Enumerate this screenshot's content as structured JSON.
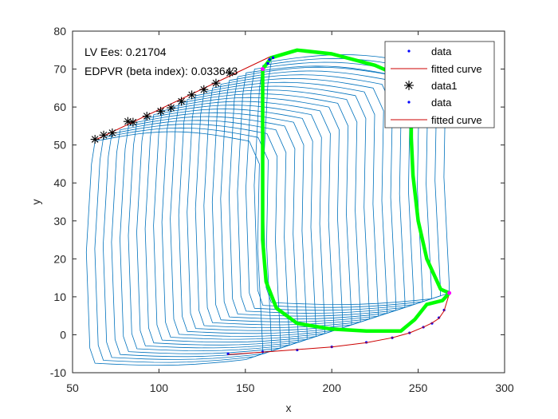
{
  "chart_data": {
    "type": "line",
    "title": "",
    "xlabel": "x",
    "ylabel": "y",
    "xlim": [
      50,
      300
    ],
    "ylim": [
      -10,
      80
    ],
    "xticks": [
      50,
      100,
      150,
      200,
      250,
      300
    ],
    "yticks": [
      -10,
      0,
      10,
      20,
      30,
      40,
      50,
      60,
      70,
      80
    ],
    "grid": false,
    "legend_position": "top-right",
    "annotations": [
      "LV Ees: 0.21704",
      "EDPVR (beta index): 0.033643"
    ],
    "colors": {
      "loops": "#0072BD",
      "highlight_loop": "#00FF00",
      "esp_points": "#000000",
      "data_points": "#0000FF",
      "fitted_curve": "#CC0000",
      "axis": "#262626"
    },
    "loops": {
      "count": 22,
      "edv_range": [
        160,
        268
      ],
      "esv_range": [
        63,
        165
      ],
      "end_systolic_pressure_range": [
        51,
        72
      ],
      "end_diastolic_pressure": [
        -5,
        11
      ]
    },
    "highlight_loop": [
      [
        160,
        70
      ],
      [
        165,
        73
      ],
      [
        180,
        75
      ],
      [
        200,
        74
      ],
      [
        225,
        71
      ],
      [
        240,
        68
      ],
      [
        246,
        60
      ],
      [
        246,
        52
      ],
      [
        247,
        42
      ],
      [
        250,
        30
      ],
      [
        255,
        20
      ],
      [
        263,
        12
      ],
      [
        268,
        11
      ],
      [
        264,
        9
      ],
      [
        255,
        8
      ],
      [
        248,
        4
      ],
      [
        240,
        1
      ],
      [
        220,
        1
      ],
      [
        200,
        1.5
      ],
      [
        180,
        3
      ],
      [
        168,
        7
      ],
      [
        162,
        14
      ],
      [
        160,
        25
      ],
      [
        160,
        40
      ],
      [
        160,
        55
      ],
      [
        160,
        70
      ]
    ],
    "esp_series": {
      "x": [
        63,
        68,
        73,
        82,
        85,
        93,
        101,
        107,
        113,
        119,
        126,
        133,
        141
      ],
      "y": [
        51.5,
        52.6,
        53.2,
        56.2,
        56.0,
        57.6,
        58.9,
        59.8,
        61.5,
        63.2,
        64.6,
        66.3,
        69.0
      ]
    },
    "esp_fit": {
      "x": [
        63,
        165
      ],
      "y": [
        51.3,
        73.4
      ]
    },
    "edp_series": {
      "x": [
        140,
        160,
        180,
        200,
        220,
        235,
        245,
        253,
        258,
        262,
        265,
        268
      ],
      "y": [
        -5,
        -4.5,
        -4,
        -3.2,
        -2,
        -0.8,
        0.5,
        2,
        3,
        4.5,
        6.5,
        11
      ]
    },
    "edp_fit": {
      "x": [
        140,
        160,
        180,
        200,
        220,
        235,
        245,
        253,
        258,
        262,
        265,
        268
      ],
      "y": [
        -5.2,
        -4.6,
        -3.9,
        -3.2,
        -2.1,
        -0.8,
        0.5,
        2.0,
        3.1,
        4.3,
        6.3,
        10.8
      ]
    },
    "legend": [
      "data",
      "fitted curve",
      "data1",
      "data",
      "fitted curve"
    ]
  }
}
